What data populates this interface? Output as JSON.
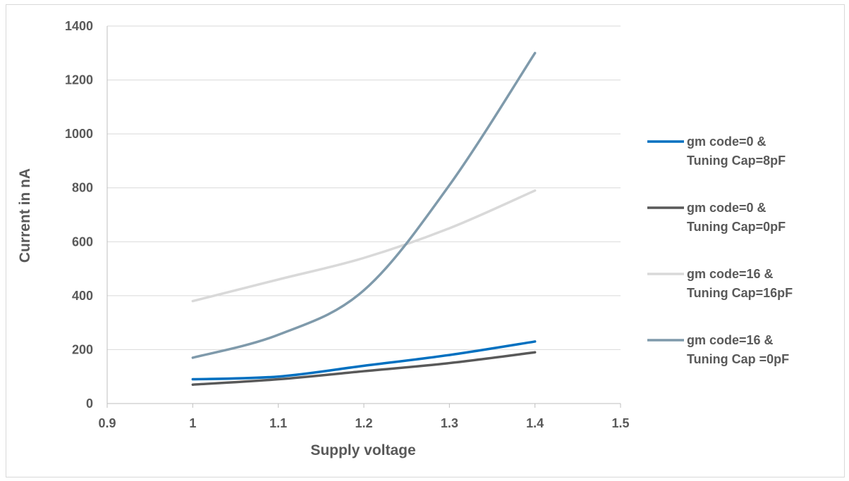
{
  "chart_data": {
    "type": "line",
    "xlabel": "Supply voltage",
    "ylabel": "Current in nA",
    "xlim": [
      0.9,
      1.5
    ],
    "ylim": [
      0,
      1400
    ],
    "x_ticks": [
      "0.9",
      "1",
      "1.1",
      "1.2",
      "1.3",
      "1.4",
      "1.5"
    ],
    "y_ticks": [
      "0",
      "200",
      "400",
      "600",
      "800",
      "1000",
      "1200",
      "1400"
    ],
    "grid": "horizontal",
    "legend_position": "right",
    "x": [
      1.0,
      1.1,
      1.2,
      1.3,
      1.4
    ],
    "series": [
      {
        "name_line1": "gm code=0 &",
        "name_line2": "Tuning Cap=8pF",
        "color": "#0070c0",
        "values": [
          90,
          100,
          140,
          180,
          230
        ]
      },
      {
        "name_line1": "gm code=0 &",
        "name_line2": "Tuning Cap=0pF",
        "color": "#595959",
        "values": [
          70,
          90,
          120,
          150,
          190
        ]
      },
      {
        "name_line1": "gm code=16 &",
        "name_line2": "Tuning Cap=16pF",
        "color": "#d9d9d9",
        "values": [
          380,
          460,
          540,
          650,
          790
        ]
      },
      {
        "name_line1": "gm code=16 &",
        "name_line2": "Tuning Cap =0pF",
        "color": "#7f9aab",
        "values": [
          170,
          255,
          420,
          810,
          1300
        ]
      }
    ]
  }
}
